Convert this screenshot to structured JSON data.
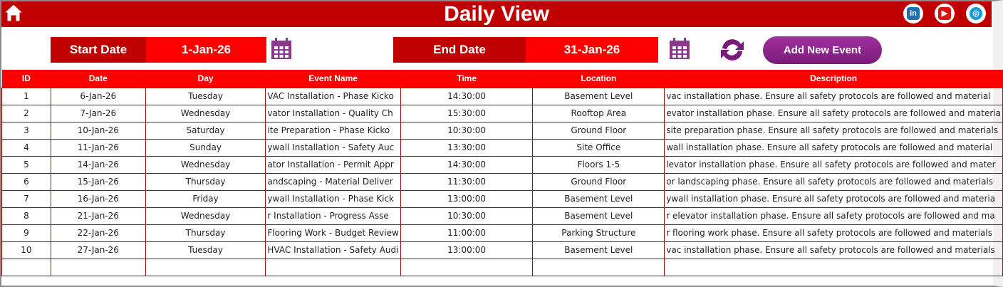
{
  "header": {
    "title": "Daily View",
    "icons": [
      "home-icon",
      "linkedin-icon",
      "youtube-icon",
      "globe-icon"
    ]
  },
  "filters": {
    "start_label": "Start Date",
    "start_value": "1-Jan-26",
    "end_label": "End Date",
    "end_value": "31-Jan-26",
    "add_button": "Add New Event"
  },
  "colors": {
    "title_bg": "#c00000",
    "header_bg": "#ff0000",
    "button": "#8b2189",
    "calendar": "#8b3a8b"
  },
  "table": {
    "columns": [
      "ID",
      "Date",
      "Day",
      "Event Name",
      "Time",
      "Location",
      "Description"
    ],
    "rows": [
      [
        "1",
        "6-Jan-26",
        "Tuesday",
        "VAC Installation - Phase Kicko",
        "14:30:00",
        "Basement Level",
        "vac installation phase. Ensure all safety protocols are followed and material"
      ],
      [
        "2",
        "7-Jan-26",
        "Wednesday",
        "vator Installation - Quality Ch",
        "15:30:00",
        "Rooftop Area",
        "evator installation phase. Ensure all safety protocols are followed and materia"
      ],
      [
        "3",
        "10-Jan-26",
        "Saturday",
        "ite Preparation - Phase Kicko",
        "10:30:00",
        "Ground Floor",
        "site preparation phase. Ensure all safety protocols are followed and materials"
      ],
      [
        "4",
        "11-Jan-26",
        "Sunday",
        "ywall Installation - Safety Auc",
        "13:30:00",
        "Site Office",
        "wall installation phase. Ensure all safety protocols are followed and material"
      ],
      [
        "5",
        "14-Jan-26",
        "Wednesday",
        "ator Installation - Permit Appr",
        "14:30:00",
        "Floors 1-5",
        "levator installation phase. Ensure all safety protocols are followed and mater"
      ],
      [
        "6",
        "15-Jan-26",
        "Thursday",
        "andscaping - Material Deliver",
        "11:30:00",
        "Ground Floor",
        "or landscaping phase. Ensure all safety protocols are followed and materials"
      ],
      [
        "7",
        "16-Jan-26",
        "Friday",
        "ywall Installation - Phase Kick",
        "13:00:00",
        "Basement Level",
        "ywall installation phase. Ensure all safety protocols are followed and materia"
      ],
      [
        "8",
        "21-Jan-26",
        "Wednesday",
        "r Installation - Progress Asse",
        "10:30:00",
        "Basement Level",
        "r elevator installation phase. Ensure all safety protocols are followed and ma"
      ],
      [
        "9",
        "22-Jan-26",
        "Thursday",
        "Flooring Work - Budget Review",
        "11:00:00",
        "Parking Structure",
        "r flooring work phase. Ensure all safety protocols are followed and materials"
      ],
      [
        "10",
        "27-Jan-26",
        "Tuesday",
        "HVAC Installation - Safety Audi",
        "13:00:00",
        "Basement Level",
        "vac installation phase. Ensure all safety protocols are followed and materials"
      ],
      [
        "",
        "",
        "",
        "",
        "",
        "",
        ""
      ]
    ]
  }
}
